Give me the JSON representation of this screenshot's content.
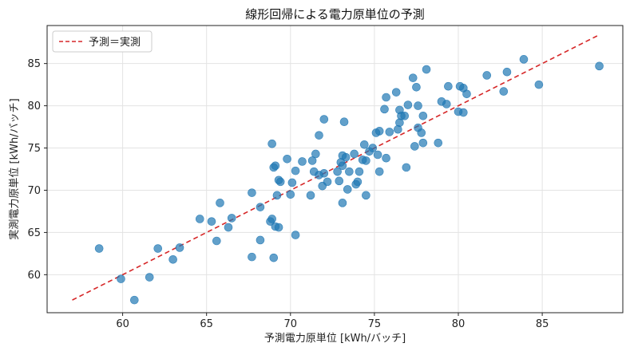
{
  "colors": {
    "points": "#1f77b4",
    "reference_line": "#d62728",
    "grid": "#e3e3e3",
    "axes": "#222222"
  },
  "chart_data": {
    "type": "scatter",
    "title": "線形回帰による電力原単位の予測",
    "xlabel": "予測電力原単位 [kWh/バッチ]",
    "ylabel": "実測電力原単位 [kWh/バッチ]",
    "xlim": [
      55.5,
      89.8
    ],
    "ylim": [
      55.5,
      89.5
    ],
    "xticks": [
      60,
      65,
      70,
      75,
      80,
      85
    ],
    "yticks": [
      60,
      65,
      70,
      75,
      80,
      85
    ],
    "grid": true,
    "legend": {
      "position": "top-left",
      "entries": [
        "予測＝実測"
      ]
    },
    "reference_line": {
      "name": "予測＝実測",
      "style": "dashed",
      "x": [
        57.0,
        88.3
      ],
      "y": [
        57.0,
        88.3
      ]
    },
    "points": [
      [
        58.6,
        63.1
      ],
      [
        59.9,
        59.5
      ],
      [
        60.7,
        57.0
      ],
      [
        61.6,
        59.7
      ],
      [
        62.1,
        63.1
      ],
      [
        63.0,
        61.8
      ],
      [
        63.4,
        63.2
      ],
      [
        64.6,
        66.6
      ],
      [
        65.3,
        66.3
      ],
      [
        65.6,
        64.0
      ],
      [
        65.8,
        68.5
      ],
      [
        66.3,
        65.6
      ],
      [
        66.5,
        66.7
      ],
      [
        67.7,
        62.1
      ],
      [
        67.7,
        69.7
      ],
      [
        68.2,
        64.1
      ],
      [
        68.2,
        68.0
      ],
      [
        68.8,
        66.3
      ],
      [
        68.9,
        66.6
      ],
      [
        68.9,
        75.5
      ],
      [
        69.0,
        62.0
      ],
      [
        69.0,
        72.7
      ],
      [
        69.1,
        65.7
      ],
      [
        69.1,
        72.9
      ],
      [
        69.2,
        69.4
      ],
      [
        69.3,
        65.6
      ],
      [
        69.3,
        71.2
      ],
      [
        69.4,
        71.0
      ],
      [
        69.8,
        73.7
      ],
      [
        70.0,
        69.5
      ],
      [
        70.1,
        70.9
      ],
      [
        70.3,
        64.7
      ],
      [
        70.3,
        72.3
      ],
      [
        70.7,
        73.4
      ],
      [
        71.2,
        69.4
      ],
      [
        71.3,
        73.5
      ],
      [
        71.4,
        72.2
      ],
      [
        71.5,
        74.3
      ],
      [
        71.7,
        71.8
      ],
      [
        71.7,
        76.5
      ],
      [
        71.9,
        70.5
      ],
      [
        72.0,
        78.4
      ],
      [
        72.0,
        72.0
      ],
      [
        72.2,
        71.0
      ],
      [
        72.8,
        72.2
      ],
      [
        72.9,
        71.1
      ],
      [
        73.0,
        73.3
      ],
      [
        73.1,
        74.1
      ],
      [
        73.1,
        68.5
      ],
      [
        73.1,
        72.9
      ],
      [
        73.2,
        78.1
      ],
      [
        73.3,
        73.9
      ],
      [
        73.4,
        70.1
      ],
      [
        73.5,
        72.2
      ],
      [
        73.8,
        74.3
      ],
      [
        73.9,
        70.7
      ],
      [
        74.0,
        71.0
      ],
      [
        74.1,
        72.2
      ],
      [
        74.3,
        73.6
      ],
      [
        74.4,
        75.4
      ],
      [
        74.5,
        73.5
      ],
      [
        74.5,
        69.4
      ],
      [
        74.7,
        74.6
      ],
      [
        74.9,
        75.0
      ],
      [
        75.1,
        76.8
      ],
      [
        75.2,
        74.2
      ],
      [
        75.3,
        77.0
      ],
      [
        75.3,
        72.2
      ],
      [
        75.6,
        79.6
      ],
      [
        75.7,
        81.0
      ],
      [
        75.7,
        73.8
      ],
      [
        75.9,
        76.9
      ],
      [
        76.3,
        81.6
      ],
      [
        76.4,
        77.2
      ],
      [
        76.5,
        78.0
      ],
      [
        76.5,
        79.5
      ],
      [
        76.6,
        78.8
      ],
      [
        76.8,
        78.8
      ],
      [
        76.9,
        72.7
      ],
      [
        77.0,
        80.1
      ],
      [
        77.3,
        83.3
      ],
      [
        77.4,
        75.2
      ],
      [
        77.5,
        82.2
      ],
      [
        77.6,
        80.0
      ],
      [
        77.6,
        77.4
      ],
      [
        77.8,
        76.8
      ],
      [
        77.9,
        75.6
      ],
      [
        77.9,
        78.8
      ],
      [
        78.1,
        84.3
      ],
      [
        78.8,
        75.6
      ],
      [
        79.0,
        80.5
      ],
      [
        79.3,
        80.2
      ],
      [
        79.4,
        82.3
      ],
      [
        80.0,
        79.3
      ],
      [
        80.1,
        82.3
      ],
      [
        80.3,
        82.1
      ],
      [
        80.3,
        79.2
      ],
      [
        80.5,
        81.4
      ],
      [
        81.7,
        83.6
      ],
      [
        82.7,
        81.7
      ],
      [
        82.9,
        84.0
      ],
      [
        83.9,
        85.5
      ],
      [
        84.8,
        82.5
      ],
      [
        88.4,
        84.7
      ]
    ]
  }
}
